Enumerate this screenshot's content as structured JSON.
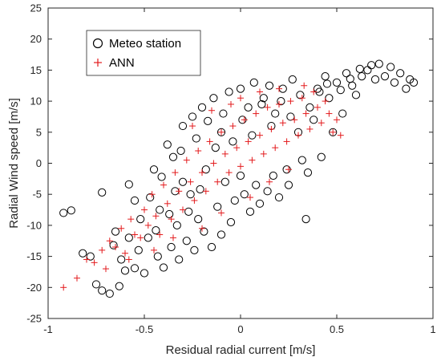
{
  "chart_data": {
    "type": "scatter",
    "title": "",
    "xlabel": "Residual radial current [m/s]",
    "ylabel": "Radial Wind speed  [m/s]",
    "xlim": [
      -1,
      1
    ],
    "ylim": [
      -25,
      25
    ],
    "xticks": [
      -1,
      -0.5,
      0,
      0.5,
      1
    ],
    "yticks": [
      -25,
      -20,
      -15,
      -10,
      -5,
      0,
      5,
      10,
      15,
      20,
      25
    ],
    "xtick_labels": [
      "-1",
      "-0.5",
      "0",
      "0.5",
      "1"
    ],
    "ytick_labels": [
      "-25",
      "-20",
      "-15",
      "-10",
      "-5",
      "0",
      "5",
      "10",
      "15",
      "20",
      "25"
    ],
    "grid": false,
    "legend_position": "top-left",
    "series": [
      {
        "name": "Meteo station",
        "marker": "circle-open",
        "color": "#000000",
        "points": [
          [
            -0.92,
            -8.0
          ],
          [
            -0.88,
            -7.6
          ],
          [
            -0.82,
            -14.5
          ],
          [
            -0.78,
            -15.0
          ],
          [
            -0.75,
            -19.5
          ],
          [
            -0.72,
            -4.7
          ],
          [
            -0.72,
            -20.5
          ],
          [
            -0.68,
            -21.0
          ],
          [
            -0.66,
            -13.2
          ],
          [
            -0.63,
            -19.8
          ],
          [
            -0.6,
            -17.3
          ],
          [
            -0.58,
            -3.4
          ],
          [
            -0.55,
            -6.0
          ],
          [
            -0.55,
            -16.9
          ],
          [
            -0.52,
            -9.0
          ],
          [
            -0.5,
            -17.7
          ],
          [
            -0.48,
            -12.0
          ],
          [
            -0.45,
            -1.0
          ],
          [
            -0.43,
            -15.0
          ],
          [
            -0.42,
            -7.5
          ],
          [
            -0.4,
            -16.8
          ],
          [
            -0.38,
            3.0
          ],
          [
            -0.36,
            -13.5
          ],
          [
            -0.35,
            1.0
          ],
          [
            -0.33,
            -10.0
          ],
          [
            -0.32,
            -15.5
          ],
          [
            -0.3,
            -3.0
          ],
          [
            -0.3,
            6.0
          ],
          [
            -0.28,
            -12.5
          ],
          [
            -0.26,
            -5.0
          ],
          [
            -0.25,
            7.5
          ],
          [
            -0.24,
            -14.0
          ],
          [
            -0.22,
            -9.0
          ],
          [
            -0.2,
            9.0
          ],
          [
            -0.19,
            -11.0
          ],
          [
            -0.18,
            -1.0
          ],
          [
            -0.15,
            -13.5
          ],
          [
            -0.14,
            10.5
          ],
          [
            -0.12,
            -7.0
          ],
          [
            -0.1,
            -11.5
          ],
          [
            -0.1,
            5.0
          ],
          [
            -0.08,
            -3.0
          ],
          [
            -0.06,
            11.5
          ],
          [
            -0.05,
            -9.5
          ],
          [
            -0.03,
            -6.0
          ],
          [
            0.0,
            12.0
          ],
          [
            0.0,
            -2.0
          ],
          [
            0.02,
            -5.0
          ],
          [
            0.04,
            9.0
          ],
          [
            0.05,
            -7.8
          ],
          [
            0.07,
            13.0
          ],
          [
            0.08,
            -3.5
          ],
          [
            0.1,
            -6.5
          ],
          [
            0.12,
            10.5
          ],
          [
            0.14,
            -4.5
          ],
          [
            0.15,
            12.5
          ],
          [
            0.17,
            -2.0
          ],
          [
            0.18,
            8.0
          ],
          [
            0.2,
            -5.5
          ],
          [
            0.22,
            12.0
          ],
          [
            0.24,
            -1.0
          ],
          [
            0.25,
            -3.5
          ],
          [
            0.27,
            13.5
          ],
          [
            0.3,
            5.0
          ],
          [
            0.32,
            0.5
          ],
          [
            0.34,
            -9.0
          ],
          [
            0.35,
            -1.5
          ],
          [
            0.38,
            7.0
          ],
          [
            0.4,
            12.0
          ],
          [
            0.42,
            1.0
          ],
          [
            0.44,
            14.0
          ],
          [
            0.46,
            10.5
          ],
          [
            0.48,
            5.0
          ],
          [
            0.5,
            13.0
          ],
          [
            0.53,
            8.0
          ],
          [
            0.55,
            14.5
          ],
          [
            0.58,
            12.5
          ],
          [
            0.6,
            11.0
          ],
          [
            0.63,
            14.0
          ],
          [
            0.66,
            15.0
          ],
          [
            0.68,
            15.8
          ],
          [
            0.7,
            13.5
          ],
          [
            0.72,
            16.0
          ],
          [
            0.75,
            14.0
          ],
          [
            0.78,
            15.5
          ],
          [
            0.8,
            13.0
          ],
          [
            0.83,
            14.5
          ],
          [
            0.86,
            12.0
          ],
          [
            0.88,
            13.5
          ],
          [
            0.9,
            13.0
          ],
          [
            -0.65,
            -11.0
          ],
          [
            -0.62,
            -15.5
          ],
          [
            -0.58,
            -12.0
          ],
          [
            -0.53,
            -14.0
          ],
          [
            -0.47,
            -5.5
          ],
          [
            -0.44,
            -10.8
          ],
          [
            -0.41,
            -2.2
          ],
          [
            -0.37,
            -8.2
          ],
          [
            -0.34,
            -4.5
          ],
          [
            -0.31,
            2.0
          ],
          [
            -0.27,
            -7.8
          ],
          [
            -0.23,
            4.0
          ],
          [
            -0.21,
            -4.2
          ],
          [
            -0.17,
            6.8
          ],
          [
            -0.13,
            2.5
          ],
          [
            -0.09,
            8.0
          ],
          [
            -0.04,
            3.5
          ],
          [
            0.01,
            7.0
          ],
          [
            0.06,
            4.5
          ],
          [
            0.11,
            9.5
          ],
          [
            0.16,
            6.0
          ],
          [
            0.21,
            10.0
          ],
          [
            0.26,
            7.5
          ],
          [
            0.31,
            11.0
          ],
          [
            0.36,
            9.0
          ],
          [
            0.41,
            11.5
          ],
          [
            0.45,
            12.8
          ],
          [
            0.52,
            11.8
          ],
          [
            0.57,
            13.6
          ],
          [
            0.62,
            15.2
          ]
        ]
      },
      {
        "name": "ANN",
        "marker": "plus",
        "color": "#e31a1c",
        "points": [
          [
            -0.92,
            -20.0
          ],
          [
            -0.85,
            -18.5
          ],
          [
            -0.8,
            -15.5
          ],
          [
            -0.76,
            -16.0
          ],
          [
            -0.72,
            -14.0
          ],
          [
            -0.68,
            -12.5
          ],
          [
            -0.65,
            -13.5
          ],
          [
            -0.62,
            -10.5
          ],
          [
            -0.6,
            -14.5
          ],
          [
            -0.57,
            -9.0
          ],
          [
            -0.55,
            -11.5
          ],
          [
            -0.52,
            -12.0
          ],
          [
            -0.5,
            -7.5
          ],
          [
            -0.48,
            -10.0
          ],
          [
            -0.46,
            -5.0
          ],
          [
            -0.44,
            -8.5
          ],
          [
            -0.42,
            -11.5
          ],
          [
            -0.4,
            -3.5
          ],
          [
            -0.38,
            -6.5
          ],
          [
            -0.36,
            -9.0
          ],
          [
            -0.34,
            -1.5
          ],
          [
            -0.32,
            -4.5
          ],
          [
            -0.3,
            -7.5
          ],
          [
            -0.28,
            0.5
          ],
          [
            -0.26,
            -3.0
          ],
          [
            -0.24,
            -6.0
          ],
          [
            -0.22,
            2.0
          ],
          [
            -0.2,
            -1.5
          ],
          [
            -0.18,
            -4.5
          ],
          [
            -0.16,
            3.5
          ],
          [
            -0.14,
            0.0
          ],
          [
            -0.12,
            -3.0
          ],
          [
            -0.1,
            5.0
          ],
          [
            -0.08,
            1.5
          ],
          [
            -0.06,
            -1.5
          ],
          [
            -0.04,
            6.0
          ],
          [
            -0.02,
            2.5
          ],
          [
            0.0,
            -0.5
          ],
          [
            0.02,
            7.0
          ],
          [
            0.04,
            3.5
          ],
          [
            0.06,
            0.5
          ],
          [
            0.08,
            8.0
          ],
          [
            0.1,
            4.5
          ],
          [
            0.12,
            1.5
          ],
          [
            0.14,
            9.0
          ],
          [
            0.16,
            5.5
          ],
          [
            0.18,
            2.5
          ],
          [
            0.2,
            9.5
          ],
          [
            0.22,
            6.5
          ],
          [
            0.24,
            3.5
          ],
          [
            0.26,
            10.0
          ],
          [
            0.28,
            7.0
          ],
          [
            0.3,
            4.5
          ],
          [
            0.32,
            10.5
          ],
          [
            0.34,
            8.0
          ],
          [
            0.36,
            5.5
          ],
          [
            0.38,
            11.5
          ],
          [
            0.4,
            9.0
          ],
          [
            0.42,
            6.5
          ],
          [
            0.44,
            10.0
          ],
          [
            0.46,
            8.0
          ],
          [
            0.48,
            5.0
          ],
          [
            0.5,
            7.0
          ],
          [
            0.52,
            4.5
          ],
          [
            0.33,
            12.5
          ],
          [
            -0.1,
            -8.0
          ],
          [
            0.05,
            -5.5
          ],
          [
            0.15,
            -3.0
          ],
          [
            0.25,
            -1.0
          ],
          [
            -0.2,
            -10.5
          ],
          [
            -0.35,
            -12.0
          ],
          [
            -0.45,
            -14.0
          ],
          [
            -0.58,
            -15.5
          ],
          [
            -0.7,
            -17.0
          ],
          [
            0.0,
            10.5
          ],
          [
            -0.15,
            8.5
          ],
          [
            -0.25,
            6.0
          ],
          [
            0.1,
            11.5
          ],
          [
            0.2,
            12.0
          ],
          [
            -0.05,
            9.5
          ]
        ]
      }
    ]
  }
}
